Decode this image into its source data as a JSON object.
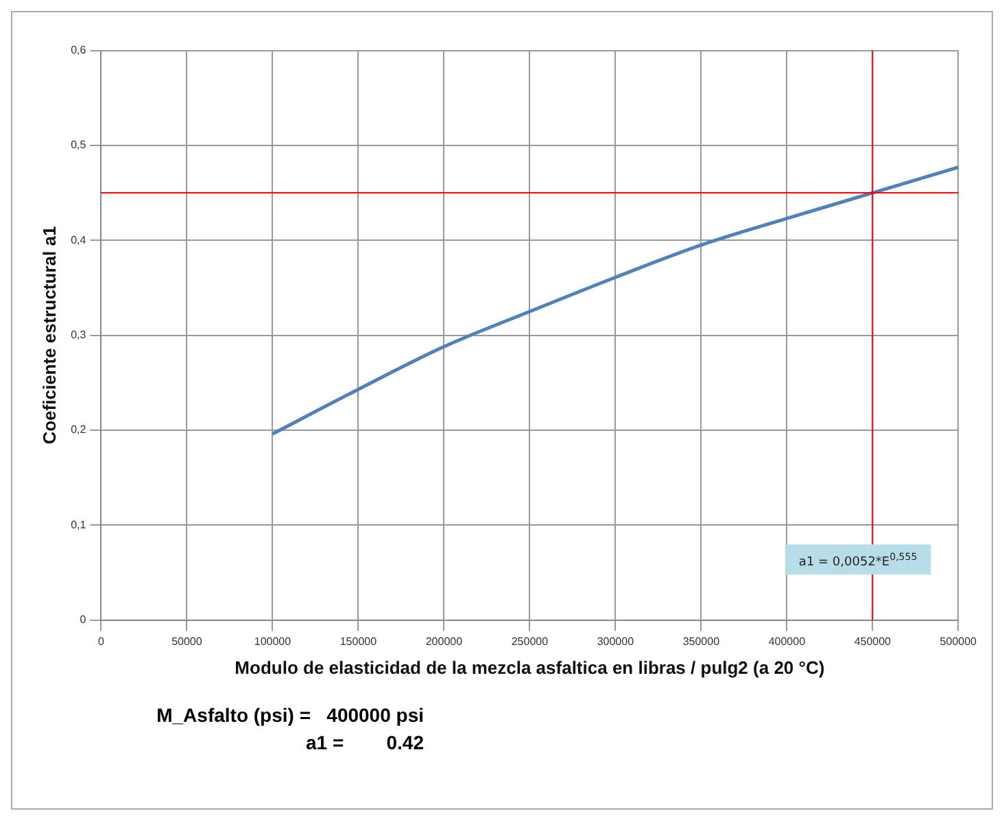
{
  "chart_data": {
    "type": "line",
    "xlabel": "Modulo de elasticidad de la mezcla asfaltica en libras / pulg2 (a 20 °C)",
    "ylabel": "Coeficiente estructural a1",
    "x": [
      100000,
      150000,
      200000,
      250000,
      300000,
      350000,
      400000,
      450000,
      500000
    ],
    "series": [
      {
        "color": "#4f81bd",
        "values": [
          0.196,
          0.243,
          0.288,
          0.325,
          0.361,
          0.395,
          0.423,
          0.45,
          0.477
        ]
      }
    ],
    "xlim": [
      0,
      500000
    ],
    "xticks": [
      0,
      50000,
      100000,
      150000,
      200000,
      250000,
      300000,
      350000,
      400000,
      450000,
      500000
    ],
    "ylim": [
      0,
      0.6
    ],
    "yticks": [
      0,
      {
        "value": 0.1,
        "label": "0,1"
      },
      {
        "value": 0.2,
        "label": "0,2"
      },
      {
        "value": 0.3,
        "label": "0,3"
      },
      {
        "value": 0.4,
        "label": "0,4"
      },
      {
        "value": 0.5,
        "label": "0,5"
      },
      {
        "value": 0.6,
        "label": "0,6"
      }
    ],
    "grid": true,
    "legend": false,
    "marker": "none",
    "line_style": "solid",
    "ref_lines": [
      {
        "axis": "y",
        "value": 0.45,
        "color": "#ff0000"
      },
      {
        "axis": "x",
        "value": 450000,
        "color": "#ff0000"
      }
    ],
    "annotations": [
      "a1 = 0,0052*E$^{0,555}$",
      "M_Asfalto (psi) =   400000 psi",
      "a1 =        0.42"
    ]
  }
}
